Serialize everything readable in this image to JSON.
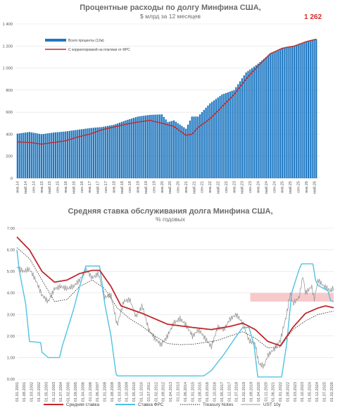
{
  "chart_data": [
    {
      "type": "bar",
      "title": "Процентные расходы по долгу Минфина США,",
      "subtitle": "$ млрд за 12 месяцев",
      "ylim": [
        0,
        1400
      ],
      "yticks": [
        "0",
        "200",
        "400",
        "600",
        "800",
        "1 000",
        "1 200",
        "1 400"
      ],
      "xticks": [
        "янв.14",
        "май.14",
        "сен.14",
        "янв.15",
        "май.15",
        "сен.15",
        "янв.16",
        "май.16",
        "сен.16",
        "янв.17",
        "май.17",
        "сен.17",
        "янв.18",
        "май.18",
        "сен.18",
        "янв.19",
        "май.19",
        "сен.19",
        "янв.20",
        "май.20",
        "сен.20",
        "янв.21",
        "май.21",
        "сен.21",
        "янв.22",
        "май.22",
        "сен.22",
        "янв.23",
        "май.23",
        "сен.23",
        "янв.24",
        "май.24",
        "сен.24",
        "янв.25",
        "май.25",
        "сен.25",
        "янв.26",
        "май.26"
      ],
      "annotation": "1 262",
      "grid": true,
      "legend_position": "top-left",
      "colors": {
        "bars": "#1f78c1",
        "line": "#c0282d"
      },
      "series": [
        {
          "name": "Всего проценты (12м)",
          "type": "bar",
          "knots": [
            [
              0,
              405
            ],
            [
              6,
              420
            ],
            [
              12,
              400
            ],
            [
              18,
              415
            ],
            [
              24,
              425
            ],
            [
              30,
              440
            ],
            [
              36,
              455
            ],
            [
              42,
              465
            ],
            [
              48,
              485
            ],
            [
              54,
              525
            ],
            [
              60,
              560
            ],
            [
              66,
              575
            ],
            [
              72,
              580
            ],
            [
              75,
              510
            ],
            [
              78,
              525
            ],
            [
              84,
              450
            ],
            [
              87,
              560
            ],
            [
              90,
              560
            ],
            [
              96,
              680
            ],
            [
              102,
              760
            ],
            [
              108,
              800
            ],
            [
              114,
              960
            ],
            [
              120,
              1040
            ],
            [
              126,
              1130
            ],
            [
              132,
              1180
            ],
            [
              138,
              1200
            ],
            [
              144,
              1240
            ],
            [
              148,
              1262
            ],
            [
              149,
              1262
            ]
          ]
        },
        {
          "name": "С корректировкой на платежи от ФРС",
          "type": "line",
          "knots": [
            [
              0,
              330
            ],
            [
              6,
              325
            ],
            [
              12,
              310
            ],
            [
              18,
              325
            ],
            [
              24,
              340
            ],
            [
              30,
              375
            ],
            [
              36,
              400
            ],
            [
              42,
              440
            ],
            [
              48,
              465
            ],
            [
              54,
              490
            ],
            [
              60,
              510
            ],
            [
              66,
              525
            ],
            [
              72,
              500
            ],
            [
              78,
              470
            ],
            [
              84,
              390
            ],
            [
              87,
              400
            ],
            [
              90,
              460
            ],
            [
              96,
              540
            ],
            [
              102,
              650
            ],
            [
              108,
              760
            ],
            [
              114,
              900
            ],
            [
              120,
              1020
            ],
            [
              126,
              1130
            ],
            [
              132,
              1180
            ],
            [
              138,
              1200
            ],
            [
              144,
              1240
            ],
            [
              149,
              1262
            ]
          ]
        }
      ]
    },
    {
      "type": "line",
      "title": "Средняя ставка обслуживания долга Минфина США,",
      "subtitle": "% годовых",
      "ylim": [
        0,
        7
      ],
      "yticks": [
        "0.00",
        "1.00",
        "2.00",
        "3.00",
        "4.00",
        "5.00",
        "6.00",
        "7.00"
      ],
      "xticks": [
        "01.01.2001",
        "01.08.2001",
        "01.03.2002",
        "01.10.2002",
        "01.05.2003",
        "01.12.2003",
        "01.07.2004",
        "01.02.2005",
        "01.09.2005",
        "01.04.2006",
        "01.11.2006",
        "01.06.2007",
        "01.01.2008",
        "01.08.2008",
        "01.03.2009",
        "01.10.2009",
        "01.05.2010",
        "01.12.2010",
        "01.07.2011",
        "01.02.2012",
        "01.09.2012",
        "01.04.2013",
        "01.11.2013",
        "01.06.2014",
        "01.01.2015",
        "01.08.2015",
        "01.03.2016",
        "01.10.2016",
        "01.05.2017",
        "01.12.2017",
        "01.07.2018",
        "01.02.2019",
        "01.09.2019",
        "01.04.2020",
        "01.11.2020",
        "01.06.2021",
        "01.01.2022",
        "01.08.2022",
        "01.03.2023",
        "01.10.2023",
        "01.05.2024",
        "01.12.2024",
        "01.07.2025",
        "01.02.2026"
      ],
      "highlight_band": [
        3.6,
        4.0
      ],
      "grid": true,
      "legend_position": "bottom",
      "series": [
        {
          "name": "Средняя ставка",
          "color": "#c0282d",
          "style": "solid",
          "knots": [
            [
              2001.0,
              6.6
            ],
            [
              2002.0,
              6.0
            ],
            [
              2003.0,
              5.0
            ],
            [
              2004.0,
              4.5
            ],
            [
              2005.0,
              4.6
            ],
            [
              2006.0,
              4.9
            ],
            [
              2007.0,
              5.05
            ],
            [
              2007.6,
              5.05
            ],
            [
              2008.5,
              4.3
            ],
            [
              2009.3,
              3.4
            ],
            [
              2011.0,
              3.05
            ],
            [
              2013.0,
              2.55
            ],
            [
              2015.0,
              2.4
            ],
            [
              2016.5,
              2.3
            ],
            [
              2018.0,
              2.45
            ],
            [
              2019.0,
              2.6
            ],
            [
              2020.0,
              2.3
            ],
            [
              2021.0,
              1.75
            ],
            [
              2022.0,
              1.55
            ],
            [
              2023.0,
              2.4
            ],
            [
              2024.0,
              3.05
            ],
            [
              2025.0,
              3.3
            ],
            [
              2025.6,
              3.4
            ],
            [
              2026.2,
              3.32
            ]
          ]
        },
        {
          "name": "Ставка ФРС",
          "color": "#4ec3e0",
          "style": "solid",
          "knots": [
            [
              2001.0,
              6.0
            ],
            [
              2001.2,
              5.0
            ],
            [
              2001.7,
              3.5
            ],
            [
              2002.0,
              1.75
            ],
            [
              2002.9,
              1.7
            ],
            [
              2003.0,
              1.25
            ],
            [
              2003.5,
              1.0
            ],
            [
              2004.4,
              1.0
            ],
            [
              2004.6,
              1.5
            ],
            [
              2005.0,
              2.25
            ],
            [
              2005.5,
              3.2
            ],
            [
              2006.0,
              4.3
            ],
            [
              2006.5,
              5.25
            ],
            [
              2007.6,
              5.25
            ],
            [
              2008.0,
              3.5
            ],
            [
              2008.5,
              2.0
            ],
            [
              2008.9,
              0.25
            ],
            [
              2009.0,
              0.15
            ],
            [
              2015.9,
              0.15
            ],
            [
              2016.5,
              0.4
            ],
            [
              2017.5,
              1.15
            ],
            [
              2018.5,
              2.0
            ],
            [
              2019.0,
              2.4
            ],
            [
              2019.5,
              2.4
            ],
            [
              2019.9,
              1.6
            ],
            [
              2020.2,
              0.1
            ],
            [
              2022.1,
              0.1
            ],
            [
              2022.5,
              1.6
            ],
            [
              2022.9,
              4.0
            ],
            [
              2023.5,
              5.1
            ],
            [
              2023.7,
              5.35
            ],
            [
              2024.6,
              5.35
            ],
            [
              2024.8,
              4.6
            ],
            [
              2025.0,
              4.35
            ],
            [
              2025.8,
              4.1
            ],
            [
              2026.0,
              3.65
            ],
            [
              2026.2,
              3.6
            ]
          ]
        },
        {
          "name": "Treasury Notes",
          "color": "#222222",
          "style": "dotted",
          "knots": [
            [
              2001.0,
              6.1
            ],
            [
              2002.0,
              5.6
            ],
            [
              2003.0,
              4.6
            ],
            [
              2004.0,
              3.6
            ],
            [
              2005.0,
              3.7
            ],
            [
              2006.0,
              4.3
            ],
            [
              2007.0,
              4.6
            ],
            [
              2008.0,
              4.2
            ],
            [
              2009.0,
              3.3
            ],
            [
              2010.0,
              2.8
            ],
            [
              2011.0,
              2.45
            ],
            [
              2012.0,
              2.0
            ],
            [
              2013.0,
              1.65
            ],
            [
              2014.0,
              1.6
            ],
            [
              2015.0,
              1.62
            ],
            [
              2016.0,
              1.7
            ],
            [
              2017.0,
              1.8
            ],
            [
              2018.0,
              2.0
            ],
            [
              2019.0,
              2.2
            ],
            [
              2020.0,
              1.9
            ],
            [
              2021.0,
              1.45
            ],
            [
              2022.0,
              1.5
            ],
            [
              2023.0,
              2.3
            ],
            [
              2024.0,
              2.7
            ],
            [
              2025.0,
              3.0
            ],
            [
              2026.2,
              3.15
            ]
          ]
        },
        {
          "name": "UST 10y",
          "color": "#9a9a9a",
          "style": "solid",
          "knots": [
            [
              2001.0,
              5.2
            ],
            [
              2001.5,
              5.0
            ],
            [
              2002.0,
              5.1
            ],
            [
              2002.5,
              4.6
            ],
            [
              2003.0,
              3.9
            ],
            [
              2003.5,
              3.6
            ],
            [
              2004.0,
              4.2
            ],
            [
              2004.5,
              4.3
            ],
            [
              2005.0,
              4.2
            ],
            [
              2005.5,
              4.3
            ],
            [
              2006.0,
              4.6
            ],
            [
              2006.5,
              5.1
            ],
            [
              2007.0,
              4.7
            ],
            [
              2007.5,
              4.9
            ],
            [
              2008.0,
              3.8
            ],
            [
              2008.5,
              3.9
            ],
            [
              2009.0,
              2.5
            ],
            [
              2009.5,
              3.6
            ],
            [
              2010.0,
              3.7
            ],
            [
              2010.5,
              2.9
            ],
            [
              2011.0,
              3.4
            ],
            [
              2011.5,
              2.3
            ],
            [
              2012.0,
              1.9
            ],
            [
              2012.5,
              1.6
            ],
            [
              2013.0,
              2.0
            ],
            [
              2013.5,
              2.6
            ],
            [
              2014.0,
              2.8
            ],
            [
              2014.5,
              2.5
            ],
            [
              2015.0,
              2.0
            ],
            [
              2015.5,
              2.3
            ],
            [
              2016.0,
              1.9
            ],
            [
              2016.5,
              1.5
            ],
            [
              2017.0,
              2.4
            ],
            [
              2017.5,
              2.3
            ],
            [
              2018.0,
              2.8
            ],
            [
              2018.5,
              3.0
            ],
            [
              2019.0,
              2.6
            ],
            [
              2019.5,
              1.8
            ],
            [
              2020.0,
              1.6
            ],
            [
              2020.3,
              0.7
            ],
            [
              2020.7,
              0.6
            ],
            [
              2021.0,
              1.1
            ],
            [
              2021.5,
              1.4
            ],
            [
              2022.0,
              1.8
            ],
            [
              2022.5,
              3.0
            ],
            [
              2022.8,
              4.0
            ],
            [
              2023.0,
              3.5
            ],
            [
              2023.5,
              3.8
            ],
            [
              2023.8,
              4.8
            ],
            [
              2024.0,
              4.0
            ],
            [
              2024.5,
              4.3
            ],
            [
              2024.7,
              3.7
            ],
            [
              2025.0,
              4.6
            ],
            [
              2025.5,
              4.3
            ],
            [
              2026.0,
              4.1
            ],
            [
              2026.2,
              4.2
            ]
          ]
        }
      ]
    }
  ]
}
